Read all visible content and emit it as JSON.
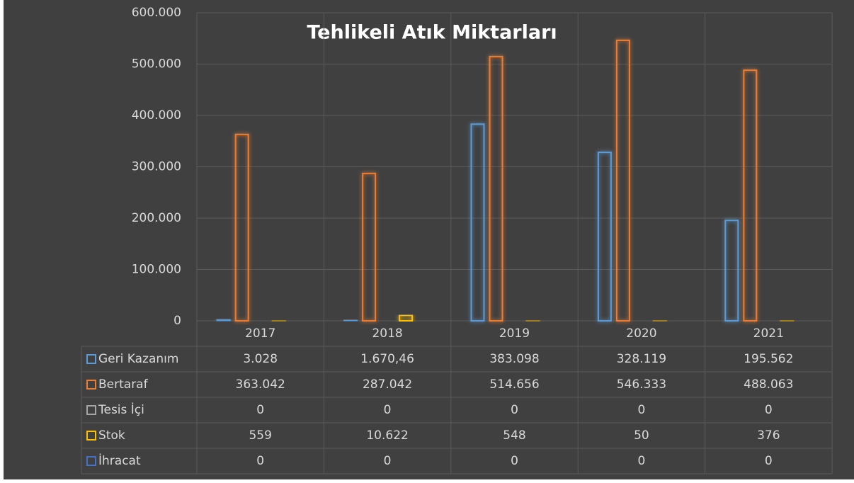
{
  "chart_data": {
    "type": "bar",
    "title": "Tehlikeli Atık Miktarları",
    "categories": [
      "2017",
      "2018",
      "2019",
      "2020",
      "2021"
    ],
    "series": [
      {
        "name": "Geri Kazanım",
        "color": "#5b9bd5",
        "values": [
          3028,
          1670.46,
          383098,
          328119,
          195562
        ],
        "value_labels": [
          "3.028",
          "1.670,46",
          "383.098",
          "328.119",
          "195.562"
        ]
      },
      {
        "name": "Bertaraf",
        "color": "#ed7d31",
        "values": [
          363042,
          287042,
          514656,
          546333,
          488063
        ],
        "value_labels": [
          "363.042",
          "287.042",
          "514.656",
          "546.333",
          "488.063"
        ]
      },
      {
        "name": "Tesis İçi",
        "color": "#a5a5a5",
        "values": [
          0,
          0,
          0,
          0,
          0
        ],
        "value_labels": [
          "0",
          "0",
          "0",
          "0",
          "0"
        ]
      },
      {
        "name": "Stok",
        "color": "#ffc000",
        "values": [
          559,
          10622,
          548,
          50,
          376
        ],
        "value_labels": [
          "559",
          "10.622",
          "548",
          "50",
          "376"
        ]
      },
      {
        "name": "İhracat",
        "color": "#4472c4",
        "values": [
          0,
          0,
          0,
          0,
          0
        ],
        "value_labels": [
          "0",
          "0",
          "0",
          "0",
          "0"
        ]
      }
    ],
    "ylim": [
      0,
      600000
    ],
    "yticks": [
      0,
      {
        "value": 100000,
        "label": "100.000"
      },
      {
        "value": 200000,
        "label": "200.000"
      },
      {
        "value": 300000,
        "label": "300.000"
      },
      {
        "value": 400000,
        "label": "400.000"
      },
      {
        "value": 500000,
        "label": "500.000"
      },
      {
        "value": 600000,
        "label": "600.000"
      }
    ],
    "grid": true,
    "legend": "table"
  }
}
